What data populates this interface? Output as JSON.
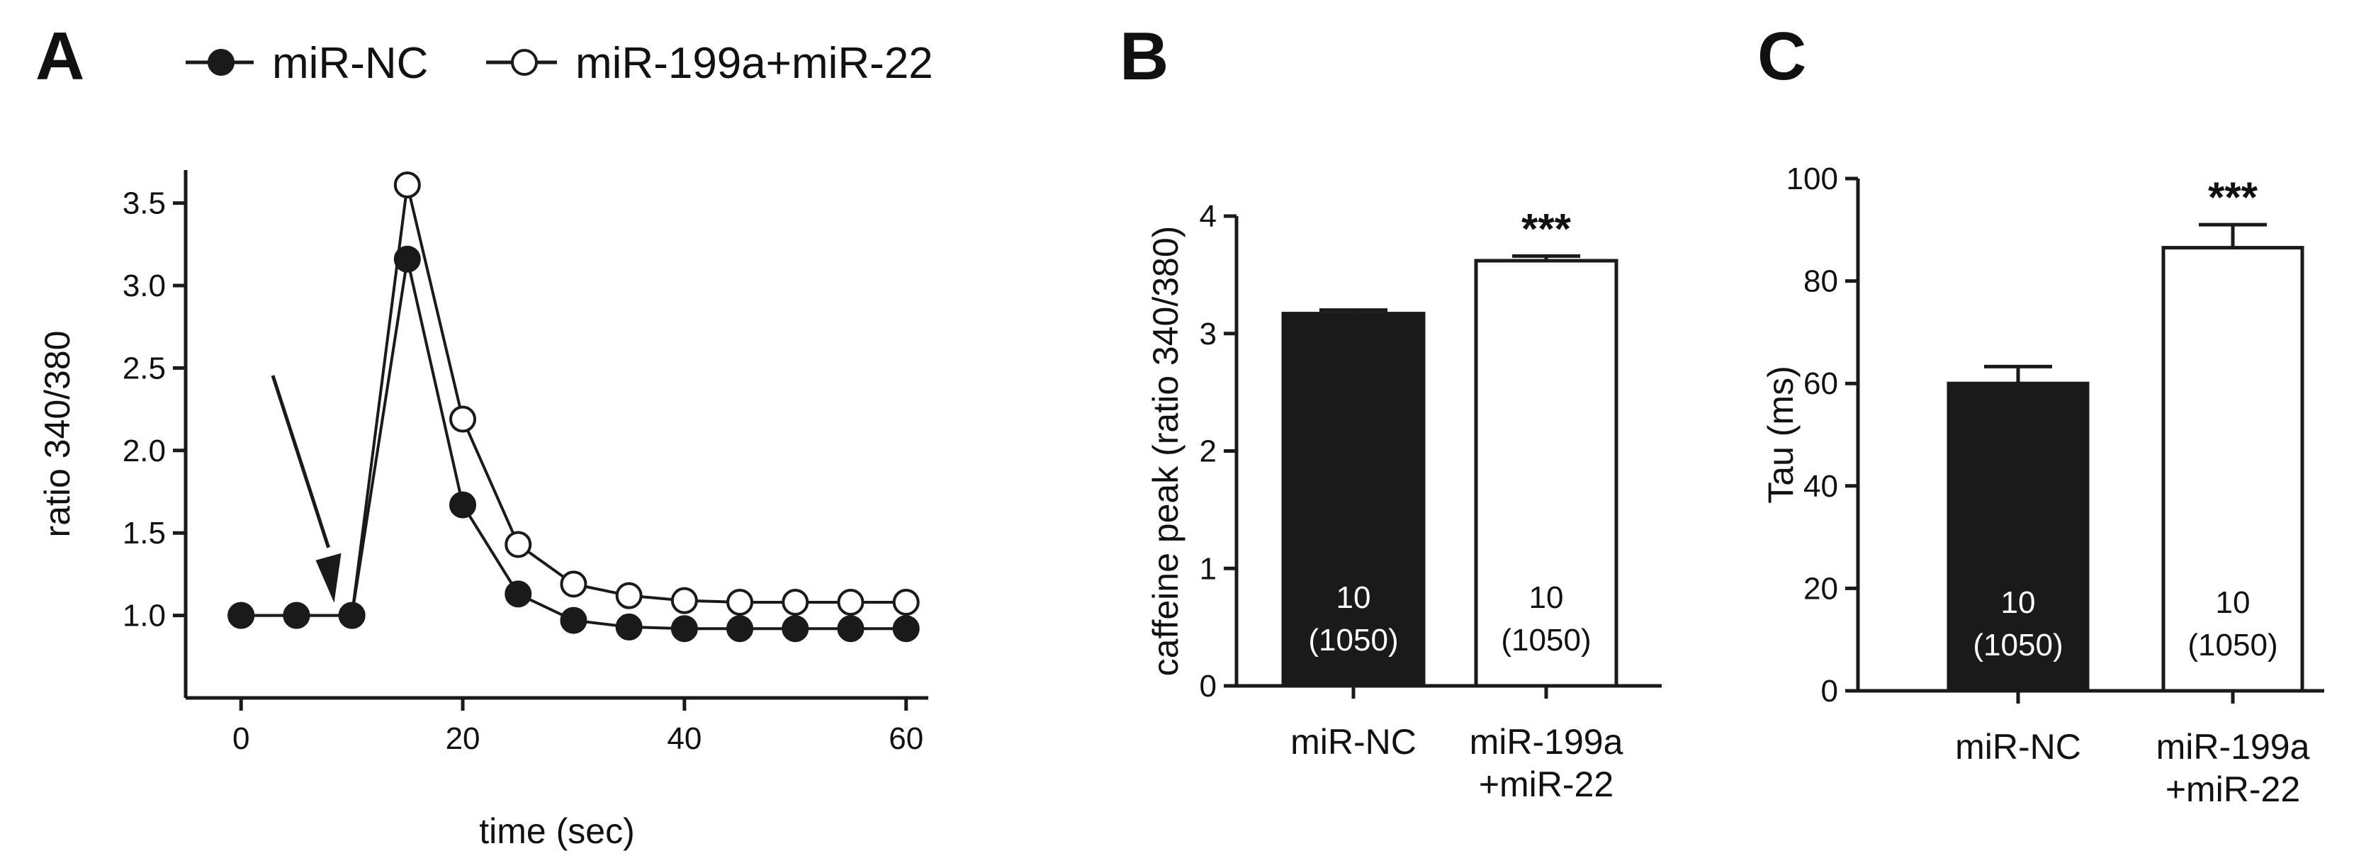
{
  "colors": {
    "filled": "#1a1a1a",
    "open": "#ffffff",
    "stroke": "#1a1a1a"
  },
  "panels": {
    "A": {
      "letter": "A"
    },
    "B": {
      "letter": "B"
    },
    "C": {
      "letter": "C"
    }
  },
  "legend": {
    "series1": "miR-NC",
    "series2": "miR-199a+miR-22"
  },
  "chart_data": [
    {
      "panel": "A",
      "type": "line",
      "title": "",
      "xlabel": "time (sec)",
      "ylabel": "ratio 340/380",
      "xlim": [
        -5,
        62
      ],
      "ylim": [
        0.5,
        3.7
      ],
      "xticks": [
        "0",
        "20",
        "40",
        "60"
      ],
      "yticks": [
        "1.0",
        "1.5",
        "2.0",
        "2.5",
        "3.0",
        "3.5"
      ],
      "x": [
        0,
        5,
        10,
        15,
        20,
        25,
        30,
        35,
        40,
        45,
        50,
        55,
        60
      ],
      "series": [
        {
          "name": "miR-NC",
          "marker": "filled",
          "values": [
            1.0,
            1.0,
            1.0,
            3.16,
            1.67,
            1.13,
            0.97,
            0.93,
            0.92,
            0.92,
            0.92,
            0.92,
            0.92
          ]
        },
        {
          "name": "miR-199a+miR-22",
          "marker": "open",
          "values": [
            1.0,
            1.0,
            1.0,
            3.61,
            2.19,
            1.43,
            1.19,
            1.12,
            1.09,
            1.08,
            1.08,
            1.08,
            1.08
          ]
        }
      ],
      "annotations": [
        {
          "type": "arrow",
          "x": 7.5,
          "y": 1.3
        }
      ]
    },
    {
      "panel": "B",
      "type": "bar",
      "title": "",
      "ylabel": "caffeine peak (ratio 340/380)",
      "ylim": [
        0,
        4
      ],
      "yticks": [
        "0",
        "1",
        "2",
        "3",
        "4"
      ],
      "categories": [
        "miR-NC",
        "miR-199a+miR-22"
      ],
      "category_lines": [
        [
          "miR-NC"
        ],
        [
          "miR-199a",
          "+miR-22"
        ]
      ],
      "values": [
        3.17,
        3.62
      ],
      "errors": [
        0.03,
        0.04
      ],
      "fills": [
        "filled",
        "open"
      ],
      "n_labels": [
        [
          "10",
          "(1050)"
        ],
        [
          "10",
          "(1050)"
        ]
      ],
      "significance": [
        "",
        "***"
      ]
    },
    {
      "panel": "C",
      "type": "bar",
      "title": "",
      "ylabel": "Tau (ms)",
      "ylim": [
        0,
        100
      ],
      "yticks": [
        "0",
        "20",
        "40",
        "60",
        "80",
        "100"
      ],
      "categories": [
        "miR-NC",
        "miR-199a+miR-22"
      ],
      "category_lines": [
        [
          "miR-NC"
        ],
        [
          "miR-199a",
          "+miR-22"
        ]
      ],
      "values": [
        60,
        86.5
      ],
      "errors": [
        3.3,
        4.5
      ],
      "fills": [
        "filled",
        "open"
      ],
      "n_labels": [
        [
          "10",
          "(1050)"
        ],
        [
          "10",
          "(1050)"
        ]
      ],
      "significance": [
        "",
        "***"
      ]
    }
  ]
}
